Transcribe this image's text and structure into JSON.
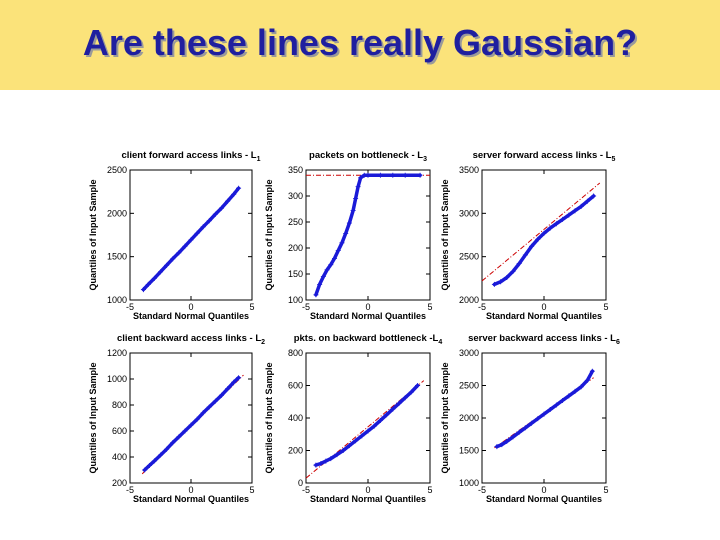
{
  "slide": {
    "title": "Are these lines really Gaussian?"
  },
  "colors": {
    "title_bar": "#fbe37a",
    "title_text": "#1f1f9f",
    "data": "#1a1ad8",
    "reference": "#cc0000"
  },
  "chart_data": [
    {
      "type": "scatter",
      "title": "client forward access links - L",
      "title_sub": "1",
      "xlabel": "Standard Normal Quantiles",
      "ylabel": "Quantiles of Input Sample",
      "xlim": [
        -5,
        5
      ],
      "ylim": [
        1000,
        2500
      ],
      "xticks": [
        -5,
        0,
        5
      ],
      "yticks": [
        1000,
        1500,
        2000,
        2500
      ],
      "reference_line": {
        "x": [
          -4,
          4
        ],
        "y": [
          1120,
          2290
        ]
      },
      "series": [
        {
          "x": [
            -3.9,
            -3.5,
            -3,
            -2.5,
            -2,
            -1.5,
            -1,
            -0.5,
            0,
            0.5,
            1,
            1.5,
            2,
            2.5,
            3,
            3.5,
            3.9
          ],
          "y": [
            1120,
            1180,
            1250,
            1325,
            1400,
            1475,
            1545,
            1620,
            1695,
            1770,
            1845,
            1915,
            1990,
            2060,
            2140,
            2220,
            2290
          ]
        }
      ]
    },
    {
      "type": "scatter",
      "title": "packets on bottleneck - L",
      "title_sub": "3",
      "xlabel": "Standard Normal Quantiles",
      "ylabel": "Quantiles of Input Sample",
      "xlim": [
        -5,
        5
      ],
      "ylim": [
        100,
        350
      ],
      "xticks": [
        -5,
        0,
        5
      ],
      "yticks": [
        100,
        150,
        200,
        250,
        300,
        350
      ],
      "reference_line": {
        "x": [
          -5,
          5
        ],
        "y": [
          340,
          340
        ]
      },
      "series": [
        {
          "x": [
            -4.2,
            -3.9,
            -3.6,
            -3.3,
            -3,
            -2.7,
            -2.4,
            -2.1,
            -1.8,
            -1.5,
            -1.2,
            -1,
            -0.8,
            -0.6,
            -0.3,
            0,
            1,
            2,
            3,
            4.2
          ],
          "y": [
            110,
            130,
            145,
            158,
            168,
            180,
            195,
            210,
            228,
            248,
            272,
            295,
            318,
            335,
            340,
            340,
            340,
            340,
            340,
            340
          ]
        }
      ]
    },
    {
      "type": "scatter",
      "title": "server forward access links - L",
      "title_sub": "5",
      "xlabel": "Standard Normal Quantiles",
      "ylabel": "Quantiles of Input Sample",
      "xlim": [
        -5,
        5
      ],
      "ylim": [
        2000,
        3500
      ],
      "xticks": [
        -5,
        0,
        5
      ],
      "yticks": [
        2000,
        2500,
        3000,
        3500
      ],
      "reference_line": {
        "x": [
          -5,
          4.5
        ],
        "y": [
          2220,
          3350
        ]
      },
      "series": [
        {
          "x": [
            -4,
            -3.5,
            -3,
            -2.5,
            -2,
            -1.5,
            -1,
            -0.5,
            0,
            0.5,
            1,
            1.5,
            2,
            2.5,
            3,
            3.5,
            4
          ],
          "y": [
            2180,
            2210,
            2260,
            2330,
            2420,
            2520,
            2620,
            2700,
            2770,
            2830,
            2880,
            2930,
            2980,
            3030,
            3080,
            3140,
            3200
          ]
        }
      ]
    },
    {
      "type": "scatter",
      "title": "client backward access links - L",
      "title_sub": "2",
      "xlabel": "Standard Normal Quantiles",
      "ylabel": "Quantiles of Input Sample",
      "xlim": [
        -5,
        5
      ],
      "ylim": [
        200,
        1200
      ],
      "xticks": [
        -5,
        0,
        5
      ],
      "yticks": [
        200,
        400,
        600,
        800,
        1000,
        1200
      ],
      "reference_line": {
        "x": [
          -4,
          4.3
        ],
        "y": [
          270,
          1030
        ]
      },
      "series": [
        {
          "x": [
            -3.8,
            -3.4,
            -3,
            -2.5,
            -2,
            -1.5,
            -1,
            -0.5,
            0,
            0.5,
            1,
            1.5,
            2,
            2.5,
            3,
            3.5,
            3.9
          ],
          "y": [
            300,
            335,
            370,
            415,
            460,
            510,
            555,
            600,
            645,
            690,
            740,
            785,
            830,
            875,
            925,
            975,
            1010
          ]
        }
      ]
    },
    {
      "type": "scatter",
      "title": "pkts. on backward bottleneck -L",
      "title_sub": "4",
      "xlabel": "Standard Normal Quantiles",
      "ylabel": "Quantiles of Input Sample",
      "xlim": [
        -5,
        5
      ],
      "ylim": [
        0,
        800
      ],
      "xticks": [
        -5,
        0,
        5
      ],
      "yticks": [
        0,
        200,
        400,
        600,
        800
      ],
      "reference_line": {
        "x": [
          -5,
          4.5
        ],
        "y": [
          30,
          630
        ]
      },
      "series": [
        {
          "x": [
            -4.2,
            -3.8,
            -3.4,
            -3,
            -2.5,
            -2,
            -1.5,
            -1,
            -0.5,
            0,
            0.5,
            1,
            1.5,
            2,
            2.5,
            3,
            3.5,
            4
          ],
          "y": [
            110,
            120,
            135,
            150,
            175,
            200,
            230,
            260,
            290,
            320,
            350,
            385,
            420,
            455,
            490,
            525,
            560,
            600
          ]
        }
      ]
    },
    {
      "type": "scatter",
      "title": "server backward access links - L",
      "title_sub": "6",
      "xlabel": "Standard Normal Quantiles",
      "ylabel": "Quantiles of Input Sample",
      "xlim": [
        -5,
        5
      ],
      "ylim": [
        1000,
        3000
      ],
      "xticks": [
        -5,
        0,
        5
      ],
      "yticks": [
        1000,
        1500,
        2000,
        2500,
        3000
      ],
      "reference_line": {
        "x": [
          -4,
          4
        ],
        "y": [
          1540,
          2620
        ]
      },
      "series": [
        {
          "x": [
            -3.8,
            -3.4,
            -3,
            -2.5,
            -2,
            -1.5,
            -1,
            -0.5,
            0,
            0.5,
            1,
            1.5,
            2,
            2.5,
            3,
            3.5,
            3.9
          ],
          "y": [
            1560,
            1590,
            1640,
            1710,
            1780,
            1850,
            1920,
            1990,
            2060,
            2130,
            2200,
            2270,
            2340,
            2410,
            2480,
            2580,
            2720
          ]
        }
      ]
    }
  ]
}
